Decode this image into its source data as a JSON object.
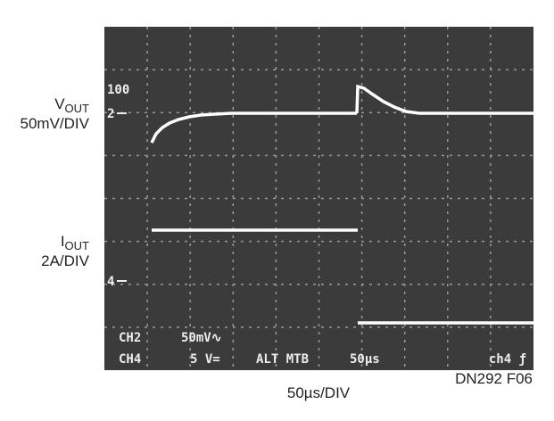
{
  "vout": {
    "symbol": "V",
    "subscript": "OUT",
    "scale": "50mV/DIV"
  },
  "iout": {
    "symbol": "I",
    "subscript": "OUT",
    "scale": "2A/DIV"
  },
  "time_scale": "50µs/DIV",
  "figure_id": "DN292 F06",
  "screen": {
    "markers": {
      "top": "100",
      "ch2": "2",
      "ch4": "4"
    },
    "readout": {
      "row1": {
        "channel": "CH2",
        "setting": "50mV∿"
      },
      "row2": {
        "channel": "CH4",
        "setting": "5 V=",
        "mode": "ALT MTB",
        "timebase": "50µs",
        "trigger": "ch4 ƒ"
      }
    }
  }
}
